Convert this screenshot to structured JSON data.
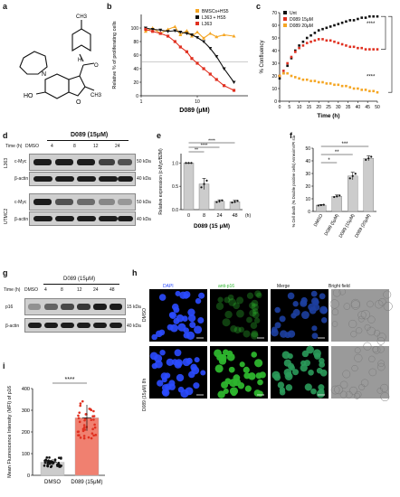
{
  "panels": {
    "a": {
      "label": "a",
      "subst_ch3": "CH3",
      "subst_ho": "HO",
      "subst_o": "O",
      "subst_n": "N",
      "subst_h": "H",
      "subst_ch3b": "CH3"
    },
    "b": {
      "label": "b"
    },
    "c": {
      "label": "c"
    },
    "d": {
      "label": "d",
      "treatment": "D089 (15μM)",
      "time_label": "Time (h)",
      "lanes": [
        "DMSO",
        "4",
        "8",
        "12",
        "24"
      ],
      "cell_lines": [
        "L363",
        "UTMC2"
      ],
      "rows": [
        "c-Myc",
        "β-actin",
        "c-Myc",
        "β-actin"
      ],
      "kda": [
        "50 kDa",
        "40 kDa",
        "50 kDa",
        "40 kDa"
      ]
    },
    "e": {
      "label": "e"
    },
    "f": {
      "label": "f"
    },
    "g": {
      "label": "g",
      "treatment": "D089 (15μM)",
      "time_label": "Time (h)",
      "lanes": [
        "DMSO",
        "4",
        "8",
        "12",
        "24",
        "48"
      ],
      "rows": [
        "p16",
        "β-actin"
      ],
      "kda": [
        "15 kDa",
        "40 kDa"
      ]
    },
    "h": {
      "label": "h",
      "columns": [
        "DAPI",
        "anti-p16",
        "Merge",
        "Bright field"
      ],
      "rows": [
        "DMSO",
        "D089 (15μM) 8h"
      ],
      "column_colors": [
        "#2b4bff",
        "#2db52d",
        "#2a7a6a",
        "#555555"
      ]
    },
    "i": {
      "label": "i"
    }
  },
  "chart_data": [
    {
      "panel": "b",
      "type": "scatter",
      "xlabel": "D089 (μM)",
      "ylabel": "Relative % of proliferating cells",
      "xscale": "log",
      "xlim": [
        1,
        80
      ],
      "ylim": [
        0,
        120
      ],
      "x_ticks": [
        "1",
        "10",
        "100"
      ],
      "y_ticks": [
        "0",
        "20",
        "40",
        "60",
        "80",
        "100"
      ],
      "legend_position": "top-right",
      "series": [
        {
          "name": "BMSCs+HS5",
          "color": "#f5a623",
          "x": [
            1.2,
            1.6,
            2.2,
            3,
            4,
            5,
            6.5,
            8,
            10,
            13,
            17,
            22,
            30,
            45
          ],
          "y": [
            95,
            100,
            92,
            98,
            102,
            90,
            96,
            88,
            94,
            85,
            92,
            87,
            90,
            88
          ]
        },
        {
          "name": "L363 + HS5",
          "color": "#111111",
          "x": [
            1.2,
            1.6,
            2.2,
            3,
            4,
            5,
            6.5,
            8,
            10,
            13,
            17,
            22,
            30,
            45
          ],
          "y": [
            100,
            98,
            97,
            95,
            96,
            94,
            92,
            90,
            86,
            80,
            70,
            58,
            40,
            20
          ]
        },
        {
          "name": "L363",
          "color": "#e03020",
          "x": [
            1.2,
            1.6,
            2.2,
            3,
            4,
            5,
            6.5,
            8,
            10,
            13,
            17,
            22,
            30,
            45
          ],
          "y": [
            98,
            95,
            92,
            88,
            80,
            72,
            65,
            55,
            48,
            40,
            32,
            24,
            15,
            8
          ]
        }
      ]
    },
    {
      "panel": "c",
      "type": "line",
      "xlabel": "Time (h)",
      "ylabel": "% Confluency",
      "xlim": [
        0,
        50
      ],
      "ylim": [
        0,
        70
      ],
      "x_ticks": [
        "0",
        "5",
        "10",
        "15",
        "20",
        "25",
        "30",
        "35",
        "40",
        "45",
        "50"
      ],
      "y_ticks": [
        "0",
        "10",
        "20",
        "30",
        "40",
        "50",
        "60",
        "70"
      ],
      "legend_position": "top-left",
      "significance": [
        "****",
        "****"
      ],
      "series": [
        {
          "name": "Unt",
          "color": "#111111",
          "x": [
            0,
            2,
            4,
            6,
            8,
            10,
            12,
            14,
            16,
            18,
            20,
            22,
            24,
            26,
            28,
            30,
            32,
            34,
            36,
            38,
            40,
            42,
            44,
            46,
            48,
            50
          ],
          "y": [
            18,
            22,
            28,
            34,
            40,
            44,
            47,
            50,
            52,
            54,
            56,
            57,
            58,
            59,
            60,
            61,
            62,
            63,
            64,
            64,
            65,
            66,
            66,
            67,
            67,
            67
          ]
        },
        {
          "name": "D089 15μM",
          "color": "#e03020",
          "x": [
            0,
            2,
            4,
            6,
            8,
            10,
            12,
            14,
            16,
            18,
            20,
            22,
            24,
            26,
            28,
            30,
            32,
            34,
            36,
            38,
            40,
            42,
            44,
            46,
            48,
            50
          ],
          "y": [
            20,
            24,
            30,
            35,
            39,
            42,
            44,
            46,
            47,
            48,
            49,
            49,
            48,
            48,
            47,
            46,
            45,
            44,
            43,
            43,
            42,
            42,
            41,
            41,
            41,
            41
          ]
        },
        {
          "name": "D089 20μM",
          "color": "#f5a623",
          "x": [
            0,
            2,
            4,
            6,
            8,
            10,
            12,
            14,
            16,
            18,
            20,
            22,
            24,
            26,
            28,
            30,
            32,
            34,
            36,
            38,
            40,
            42,
            44,
            46,
            48,
            50
          ],
          "y": [
            20,
            22,
            22,
            20,
            19,
            18,
            17,
            17,
            16,
            16,
            15,
            15,
            14,
            14,
            13,
            13,
            12,
            12,
            11,
            10,
            10,
            9,
            9,
            8,
            8,
            7
          ]
        }
      ]
    },
    {
      "panel": "e",
      "type": "bar",
      "xlabel": "D089 (15 μM)",
      "ylabel": "Relative expression (c-Myc/B2M)",
      "x_unit": "(h)",
      "categories": [
        "0",
        "8",
        "24",
        "48"
      ],
      "values": [
        1.0,
        0.55,
        0.18,
        0.17
      ],
      "errors": [
        0.0,
        0.12,
        0.03,
        0.03
      ],
      "ylim": [
        0,
        1.2
      ],
      "y_ticks": [
        "0.0",
        "0.5",
        "1.0"
      ],
      "significance": [
        "**",
        "****",
        "****"
      ],
      "color": "#cccccc"
    },
    {
      "panel": "f",
      "type": "bar",
      "ylabel": "% Cell death (% Double positive cells) AnnexinV/PI stain",
      "categories": [
        "DMSO",
        "D089 (5μM)",
        "D089 (15μM)",
        "D089 (20μM)"
      ],
      "values": [
        5,
        12,
        28,
        42
      ],
      "errors": [
        0.5,
        1.0,
        3.0,
        2.0
      ],
      "ylim": [
        0,
        50
      ],
      "y_ticks": [
        "0",
        "10",
        "20",
        "30",
        "40",
        "50"
      ],
      "significance": [
        "*",
        "**",
        "***"
      ],
      "color": "#cccccc"
    },
    {
      "panel": "i",
      "type": "bar",
      "ylabel": "Mean Fluorescence Intensity (MFI) of p16",
      "categories": [
        "DMSO",
        "D089 (15μM)"
      ],
      "values": [
        60,
        265
      ],
      "errors": [
        15,
        60
      ],
      "ylim": [
        0,
        400
      ],
      "y_ticks": [
        "0",
        "100",
        "200",
        "300",
        "400"
      ],
      "significance": [
        "****"
      ],
      "colors": [
        "#cccccc",
        "#f08070"
      ]
    }
  ]
}
